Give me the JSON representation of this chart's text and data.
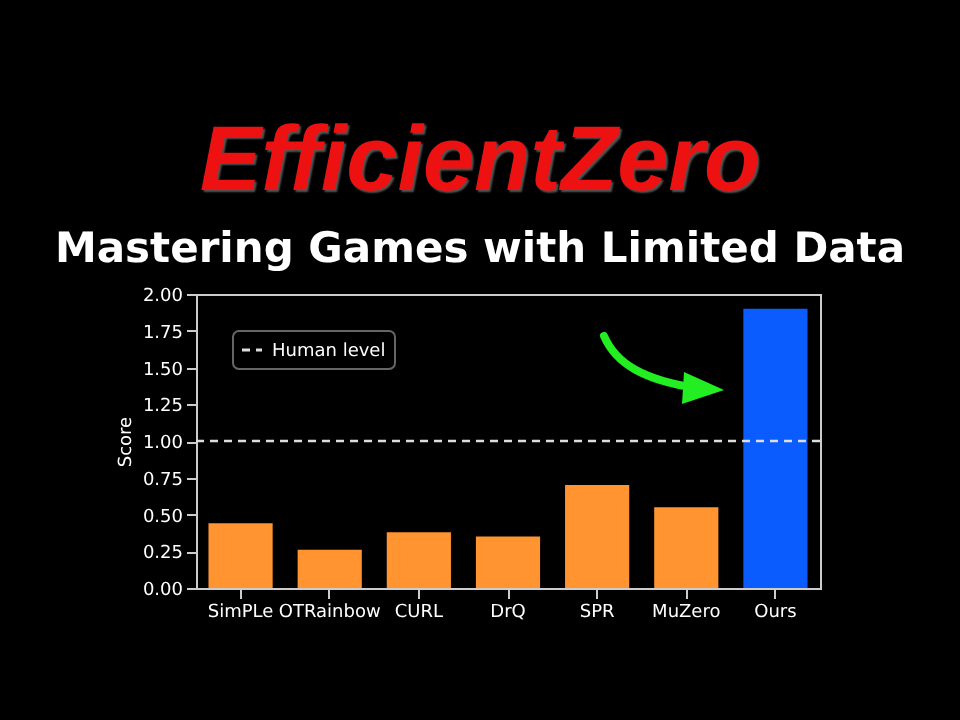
{
  "chart_data": {
    "type": "bar",
    "title": "EfficientZero",
    "subtitle": "Mastering Games with Limited Data",
    "ylabel": "Score",
    "categories": [
      "SimPLe",
      "OTRainbow",
      "CURL",
      "DrQ",
      "SPR",
      "MuZero",
      "Ours"
    ],
    "values": [
      0.44,
      0.26,
      0.38,
      0.35,
      0.7,
      0.55,
      1.9
    ],
    "colors": [
      "#ff9430",
      "#ff9430",
      "#ff9430",
      "#ff9430",
      "#ff9430",
      "#ff9430",
      "#0a5cff"
    ],
    "ylim": [
      0,
      2
    ],
    "yticks": [
      {
        "value": 0,
        "label": "0.00"
      },
      {
        "value": 0.25,
        "label": "0.25"
      },
      {
        "value": 0.5,
        "label": "0.50"
      },
      {
        "value": 0.75,
        "label": "0.75"
      },
      {
        "value": 1,
        "label": "1.00"
      },
      {
        "value": 1.25,
        "label": "1.25"
      },
      {
        "value": 1.5,
        "label": "1.50"
      },
      {
        "value": 1.75,
        "label": "1.75"
      },
      {
        "value": 2,
        "label": "2.00"
      }
    ],
    "ref_lines": [
      {
        "axis": "y",
        "value": 1,
        "label": "Human level",
        "color": "#dddddd",
        "line_style": "dashed"
      }
    ],
    "legend": "top left"
  }
}
